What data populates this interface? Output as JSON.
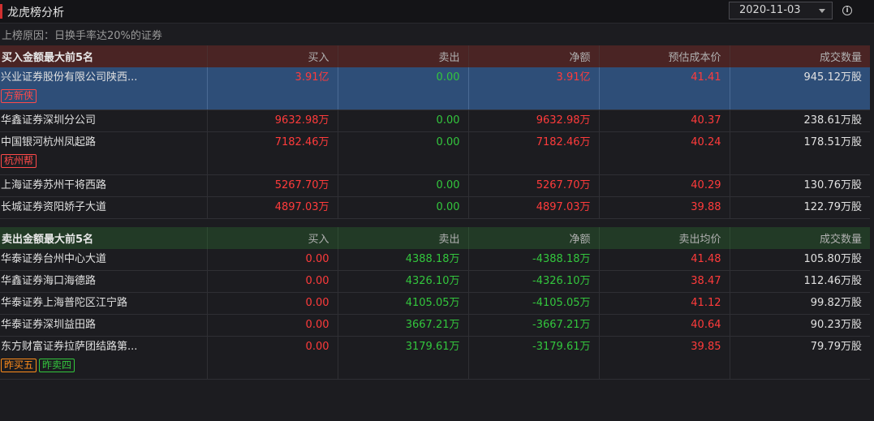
{
  "header": {
    "title": "龙虎榜分析",
    "date": "2020-11-03",
    "reason": "上榜原因：日换手率达20%的证券"
  },
  "buy_table": {
    "headers": [
      "买入金额最大前5名",
      "买入",
      "卖出",
      "净额",
      "预估成本价",
      "成交数量"
    ],
    "rows": [
      {
        "name": "兴业证券股份有限公司陕西...",
        "buy": "3.91亿",
        "sell": "0.00",
        "net": "3.91亿",
        "price": "41.41",
        "volume": "945.12万股",
        "tags": [
          "方新侠"
        ]
      },
      {
        "name": "华鑫证券深圳分公司",
        "buy": "9632.98万",
        "sell": "0.00",
        "net": "9632.98万",
        "price": "40.37",
        "volume": "238.61万股",
        "tags": []
      },
      {
        "name": "中国银河杭州凤起路",
        "buy": "7182.46万",
        "sell": "0.00",
        "net": "7182.46万",
        "price": "40.24",
        "volume": "178.51万股",
        "tags": [
          "杭州帮"
        ]
      },
      {
        "name": "上海证券苏州干将西路",
        "buy": "5267.70万",
        "sell": "0.00",
        "net": "5267.70万",
        "price": "40.29",
        "volume": "130.76万股",
        "tags": []
      },
      {
        "name": "长城证券资阳娇子大道",
        "buy": "4897.03万",
        "sell": "0.00",
        "net": "4897.03万",
        "price": "39.88",
        "volume": "122.79万股",
        "tags": []
      }
    ]
  },
  "sell_table": {
    "headers": [
      "卖出金额最大前5名",
      "买入",
      "卖出",
      "净额",
      "卖出均价",
      "成交数量"
    ],
    "rows": [
      {
        "name": "华泰证券台州中心大道",
        "buy": "0.00",
        "sell": "4388.18万",
        "net": "-4388.18万",
        "price": "41.48",
        "volume": "105.80万股",
        "tags": []
      },
      {
        "name": "华鑫证券海口海德路",
        "buy": "0.00",
        "sell": "4326.10万",
        "net": "-4326.10万",
        "price": "38.47",
        "volume": "112.46万股",
        "tags": []
      },
      {
        "name": "华泰证券上海普陀区江宁路",
        "buy": "0.00",
        "sell": "4105.05万",
        "net": "-4105.05万",
        "price": "41.12",
        "volume": "99.82万股",
        "tags": []
      },
      {
        "name": "华泰证券深圳益田路",
        "buy": "0.00",
        "sell": "3667.21万",
        "net": "-3667.21万",
        "price": "40.64",
        "volume": "90.23万股",
        "tags": []
      },
      {
        "name": "东方财富证券拉萨团结路第...",
        "buy": "0.00",
        "sell": "3179.61万",
        "net": "-3179.61万",
        "price": "39.85",
        "volume": "79.79万股",
        "tags": [
          "昨买五",
          "昨卖四"
        ]
      }
    ]
  },
  "colors": {
    "up": "#ff3b3b",
    "down": "#33c63d",
    "buy_header_bg": "#4a2424",
    "sell_header_bg": "#223a26",
    "selected_row_bg": "#2e4e78"
  }
}
